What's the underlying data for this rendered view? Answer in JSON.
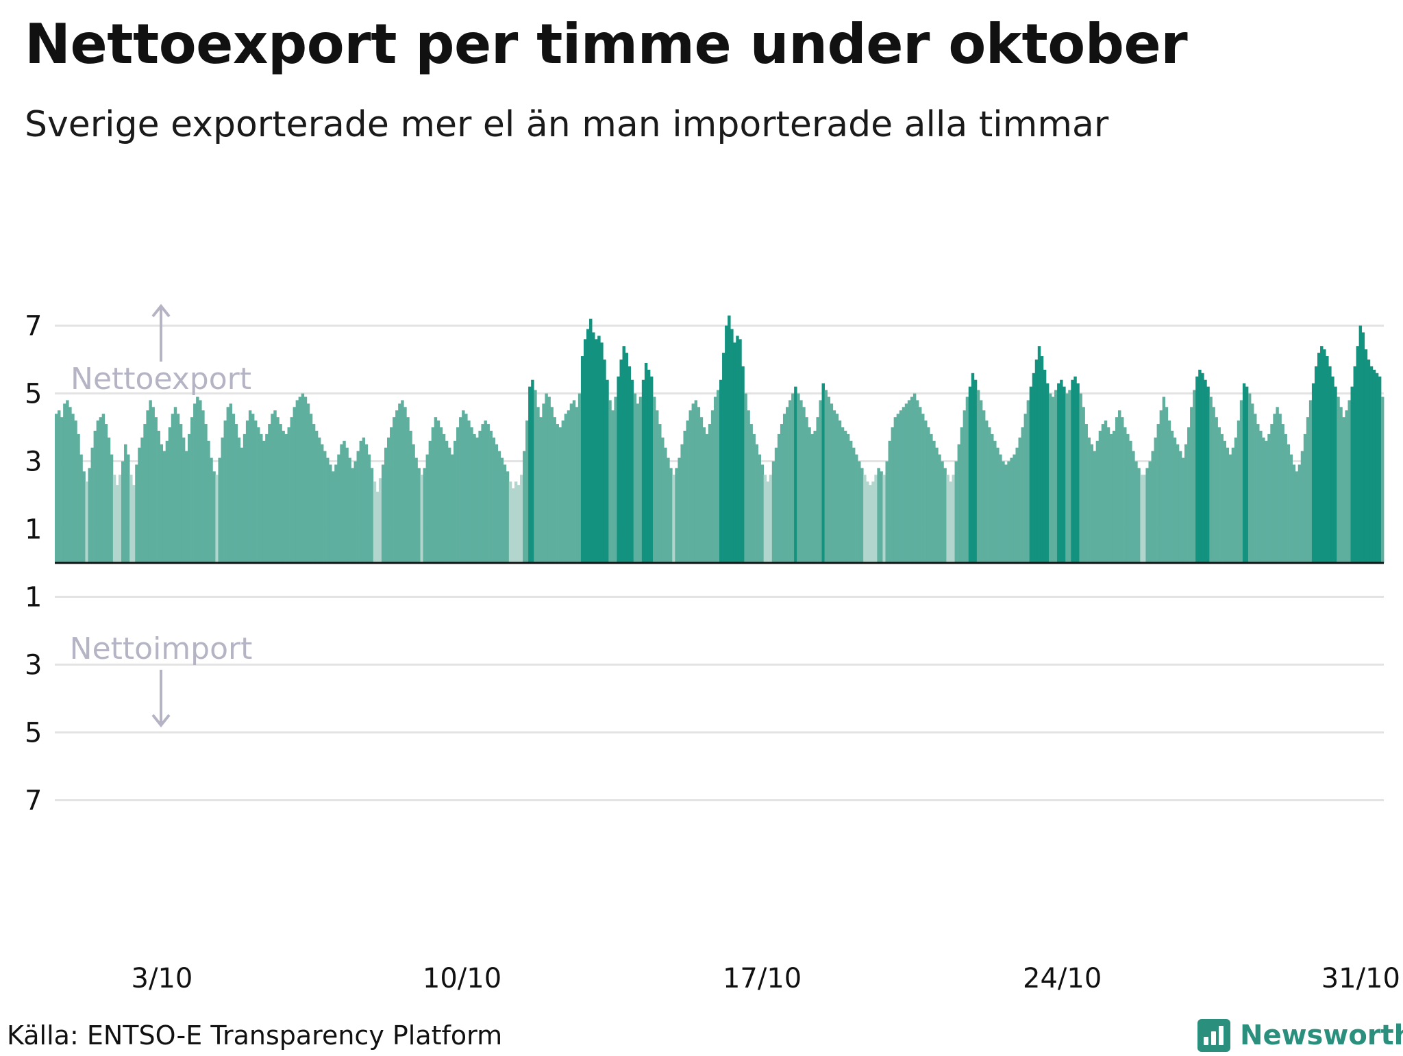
{
  "title": "Nettoexport per timme under oktober",
  "subtitle": "Sverige exporterade mer el än man importerade alla timmar",
  "source": "Källa: ENTSO-E Transparency Platform",
  "logo": {
    "text": "Newsworthy",
    "icon": "bar-chart-logo-icon",
    "color": "#2b8f7e"
  },
  "annotations": {
    "export": "Nettoexport",
    "import": "Nettoimport"
  },
  "colors": {
    "low": "#b2d6cd",
    "mid": "#5faf9f",
    "high": "#12927f",
    "grid": "#e3e3e3",
    "zero": "#111111",
    "annotation": "#b4b4c4"
  },
  "chart_data": {
    "type": "bar",
    "x_ticks": [
      "3/10",
      "10/10",
      "17/10",
      "24/10",
      "31/10"
    ],
    "y_ticks_export": [
      "7",
      "5",
      "3",
      "1"
    ],
    "y_ticks_import": [
      "1",
      "3",
      "5",
      "7"
    ],
    "ylim": [
      -8,
      7.5
    ],
    "grid": true,
    "x_unit": "day of October",
    "series": [
      {
        "values": [
          4.4,
          4.5,
          4.3,
          4.7,
          4.8,
          4.6,
          4.4,
          4.2,
          3.8,
          3.2,
          2.7,
          2.4,
          2.8,
          3.4,
          3.9,
          4.2,
          4.3,
          4.4,
          4.1,
          3.7,
          3.2,
          2.6,
          2.3,
          2.6,
          3.0,
          3.5,
          3.2,
          2.6,
          2.3,
          2.9,
          3.4,
          3.7,
          4.1,
          4.5,
          4.8,
          4.6,
          4.3,
          3.9,
          3.5,
          3.3,
          3.6,
          4.0,
          4.4,
          4.6,
          4.4,
          4.1,
          3.7,
          3.3,
          3.8,
          4.3,
          4.7,
          4.9,
          4.8,
          4.5,
          4.1,
          3.6,
          3.1,
          2.7,
          2.6,
          3.1,
          3.7,
          4.2,
          4.6,
          4.7,
          4.4,
          4.1,
          3.7,
          3.4,
          3.8,
          4.2,
          4.5,
          4.4,
          4.2,
          4.0,
          3.8,
          3.6,
          3.8,
          4.1,
          4.4,
          4.5,
          4.3,
          4.1,
          3.9,
          3.8,
          4.0,
          4.3,
          4.6,
          4.8,
          4.9,
          5.0,
          4.9,
          4.7,
          4.4,
          4.1,
          3.9,
          3.7,
          3.5,
          3.3,
          3.1,
          2.9,
          2.7,
          2.9,
          3.2,
          3.5,
          3.6,
          3.4,
          3.1,
          2.8,
          3.0,
          3.3,
          3.6,
          3.7,
          3.5,
          3.2,
          2.8,
          2.4,
          2.1,
          2.5,
          2.9,
          3.4,
          3.7,
          4.0,
          4.3,
          4.5,
          4.7,
          4.8,
          4.6,
          4.3,
          3.9,
          3.5,
          3.1,
          2.8,
          2.6,
          2.8,
          3.2,
          3.6,
          4.0,
          4.3,
          4.2,
          4.0,
          3.8,
          3.6,
          3.4,
          3.2,
          3.6,
          4.0,
          4.3,
          4.5,
          4.4,
          4.2,
          4.0,
          3.8,
          3.7,
          3.9,
          4.1,
          4.2,
          4.1,
          3.9,
          3.7,
          3.5,
          3.3,
          3.1,
          2.9,
          2.7,
          2.4,
          2.2,
          2.4,
          2.3,
          2.6,
          3.3,
          4.2,
          5.2,
          5.4,
          5.1,
          4.6,
          4.3,
          4.7,
          5.0,
          4.9,
          4.6,
          4.3,
          4.1,
          4.0,
          4.2,
          4.4,
          4.5,
          4.7,
          4.8,
          4.6,
          5.0,
          6.1,
          6.6,
          6.9,
          7.2,
          6.8,
          6.6,
          6.7,
          6.5,
          6.0,
          5.4,
          4.8,
          4.5,
          4.9,
          5.5,
          6.0,
          6.4,
          6.2,
          5.8,
          5.4,
          5.0,
          4.7,
          4.9,
          5.4,
          5.9,
          5.7,
          5.5,
          4.9,
          4.5,
          4.1,
          3.7,
          3.4,
          3.1,
          2.8,
          2.6,
          2.8,
          3.1,
          3.5,
          3.9,
          4.2,
          4.5,
          4.7,
          4.8,
          4.6,
          4.3,
          4.0,
          3.8,
          4.1,
          4.5,
          4.9,
          5.1,
          5.4,
          6.2,
          7.0,
          7.3,
          6.9,
          6.5,
          6.7,
          6.6,
          5.8,
          5.0,
          4.5,
          4.1,
          3.8,
          3.5,
          3.2,
          2.9,
          2.6,
          2.4,
          2.6,
          3.0,
          3.4,
          3.8,
          4.1,
          4.4,
          4.6,
          4.8,
          5.0,
          5.2,
          5.0,
          4.8,
          4.6,
          4.3,
          4.0,
          3.8,
          3.9,
          4.3,
          4.8,
          5.3,
          5.1,
          4.9,
          4.7,
          4.5,
          4.4,
          4.2,
          4.0,
          3.9,
          3.8,
          3.6,
          3.4,
          3.2,
          3.0,
          2.8,
          2.6,
          2.4,
          2.3,
          2.4,
          2.6,
          2.8,
          2.7,
          2.6,
          3.0,
          3.6,
          4.0,
          4.3,
          4.4,
          4.5,
          4.6,
          4.7,
          4.8,
          4.9,
          5.0,
          4.8,
          4.6,
          4.4,
          4.2,
          4.0,
          3.8,
          3.6,
          3.4,
          3.2,
          3.0,
          2.8,
          2.6,
          2.4,
          2.6,
          3.0,
          3.5,
          4.0,
          4.5,
          4.9,
          5.2,
          5.6,
          5.4,
          5.1,
          4.8,
          4.5,
          4.2,
          4.0,
          3.8,
          3.6,
          3.4,
          3.2,
          3.0,
          2.9,
          3.0,
          3.1,
          3.2,
          3.4,
          3.7,
          4.0,
          4.4,
          4.8,
          5.2,
          5.6,
          6.0,
          6.4,
          6.1,
          5.7,
          5.3,
          5.0,
          4.9,
          5.1,
          5.3,
          5.4,
          5.2,
          5.0,
          5.1,
          5.4,
          5.5,
          5.3,
          5.0,
          4.6,
          4.1,
          3.7,
          3.5,
          3.3,
          3.6,
          3.9,
          4.1,
          4.2,
          4.0,
          3.8,
          3.9,
          4.3,
          4.5,
          4.3,
          4.0,
          3.8,
          3.6,
          3.3,
          3.0,
          2.8,
          2.6,
          2.6,
          2.8,
          3.0,
          3.3,
          3.7,
          4.1,
          4.5,
          4.9,
          4.6,
          4.2,
          3.9,
          3.7,
          3.5,
          3.3,
          3.1,
          3.5,
          4.0,
          4.6,
          5.1,
          5.5,
          5.7,
          5.6,
          5.4,
          5.2,
          4.9,
          4.6,
          4.3,
          4.0,
          3.8,
          3.6,
          3.4,
          3.2,
          3.4,
          3.7,
          4.2,
          4.8,
          5.3,
          5.2,
          5.0,
          4.7,
          4.4,
          4.1,
          3.9,
          3.7,
          3.6,
          3.8,
          4.1,
          4.4,
          4.6,
          4.4,
          4.1,
          3.8,
          3.5,
          3.2,
          2.9,
          2.7,
          2.9,
          3.3,
          3.8,
          4.3,
          4.8,
          5.3,
          5.8,
          6.2,
          6.4,
          6.3,
          6.1,
          5.8,
          5.5,
          5.2,
          4.9,
          4.6,
          4.3,
          4.5,
          4.8,
          5.2,
          5.8,
          6.4,
          7.0,
          6.8,
          6.3,
          6.0,
          5.8,
          5.7,
          5.6,
          5.5,
          4.9
        ]
      }
    ]
  }
}
